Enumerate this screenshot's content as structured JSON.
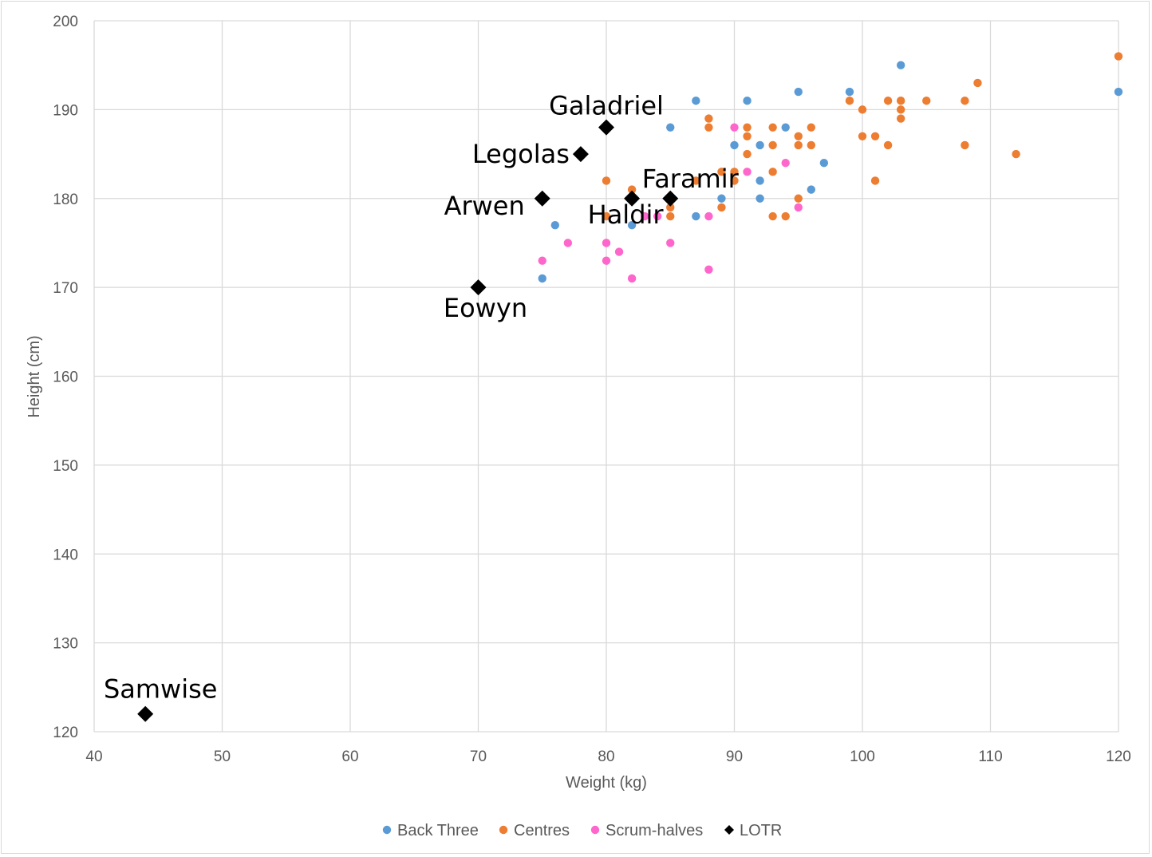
{
  "chart_data": {
    "type": "scatter",
    "title": "",
    "xlabel": "Weight (kg)",
    "ylabel": "Height (cm)",
    "xlim": [
      40,
      120
    ],
    "ylim": [
      120,
      200
    ],
    "xticks": [
      40,
      50,
      60,
      70,
      80,
      90,
      100,
      110,
      120
    ],
    "yticks": [
      120,
      130,
      140,
      150,
      160,
      170,
      180,
      190,
      200
    ],
    "grid": true,
    "legend_position": "bottom",
    "series": [
      {
        "name": "Back Three",
        "color": "#5b9bd5",
        "marker": "circle",
        "points": [
          [
            75,
            171
          ],
          [
            76,
            177
          ],
          [
            82,
            177
          ],
          [
            85,
            188
          ],
          [
            87,
            191
          ],
          [
            87,
            178
          ],
          [
            89,
            180
          ],
          [
            90,
            186
          ],
          [
            91,
            191
          ],
          [
            92,
            186
          ],
          [
            92,
            182
          ],
          [
            92,
            180
          ],
          [
            94,
            188
          ],
          [
            95,
            192
          ],
          [
            96,
            181
          ],
          [
            97,
            184
          ],
          [
            99,
            192
          ],
          [
            103,
            195
          ],
          [
            120,
            192
          ]
        ]
      },
      {
        "name": "Centres",
        "color": "#ed7d31",
        "marker": "circle",
        "points": [
          [
            80,
            182
          ],
          [
            80,
            178
          ],
          [
            82,
            181
          ],
          [
            85,
            179
          ],
          [
            85,
            178
          ],
          [
            87,
            182
          ],
          [
            88,
            189
          ],
          [
            88,
            188
          ],
          [
            89,
            183
          ],
          [
            89,
            179
          ],
          [
            90,
            183
          ],
          [
            90,
            182
          ],
          [
            91,
            188
          ],
          [
            91,
            187
          ],
          [
            91,
            185
          ],
          [
            93,
            188
          ],
          [
            93,
            186
          ],
          [
            93,
            183
          ],
          [
            93,
            178
          ],
          [
            94,
            178
          ],
          [
            95,
            187
          ],
          [
            95,
            186
          ],
          [
            95,
            180
          ],
          [
            96,
            188
          ],
          [
            96,
            186
          ],
          [
            99,
            191
          ],
          [
            100,
            190
          ],
          [
            100,
            187
          ],
          [
            101,
            187
          ],
          [
            101,
            182
          ],
          [
            102,
            191
          ],
          [
            102,
            186
          ],
          [
            103,
            191
          ],
          [
            103,
            190
          ],
          [
            103,
            189
          ],
          [
            105,
            191
          ],
          [
            108,
            191
          ],
          [
            108,
            186
          ],
          [
            109,
            193
          ],
          [
            112,
            185
          ],
          [
            120,
            196
          ]
        ]
      },
      {
        "name": "Scrum-halves",
        "color": "#ff66cc",
        "marker": "circle",
        "points": [
          [
            75,
            173
          ],
          [
            77,
            175
          ],
          [
            80,
            175
          ],
          [
            80,
            173
          ],
          [
            81,
            174
          ],
          [
            82,
            171
          ],
          [
            83,
            178
          ],
          [
            84,
            178
          ],
          [
            85,
            175
          ],
          [
            88,
            178
          ],
          [
            88,
            172
          ],
          [
            90,
            188
          ],
          [
            91,
            183
          ],
          [
            94,
            184
          ],
          [
            95,
            179
          ]
        ]
      },
      {
        "name": "LOTR",
        "color": "#000000",
        "marker": "diamond",
        "points": [
          {
            "x": 80,
            "y": 188,
            "label": "Galadriel"
          },
          {
            "x": 78,
            "y": 185,
            "label": "Legolas"
          },
          {
            "x": 75,
            "y": 180,
            "label": "Arwen"
          },
          {
            "x": 82,
            "y": 180,
            "label": "Haldir"
          },
          {
            "x": 85,
            "y": 180,
            "label": "Faramir"
          },
          {
            "x": 70,
            "y": 170,
            "label": "Eowyn"
          },
          {
            "x": 44,
            "y": 122,
            "label": "Samwise"
          }
        ]
      }
    ]
  }
}
